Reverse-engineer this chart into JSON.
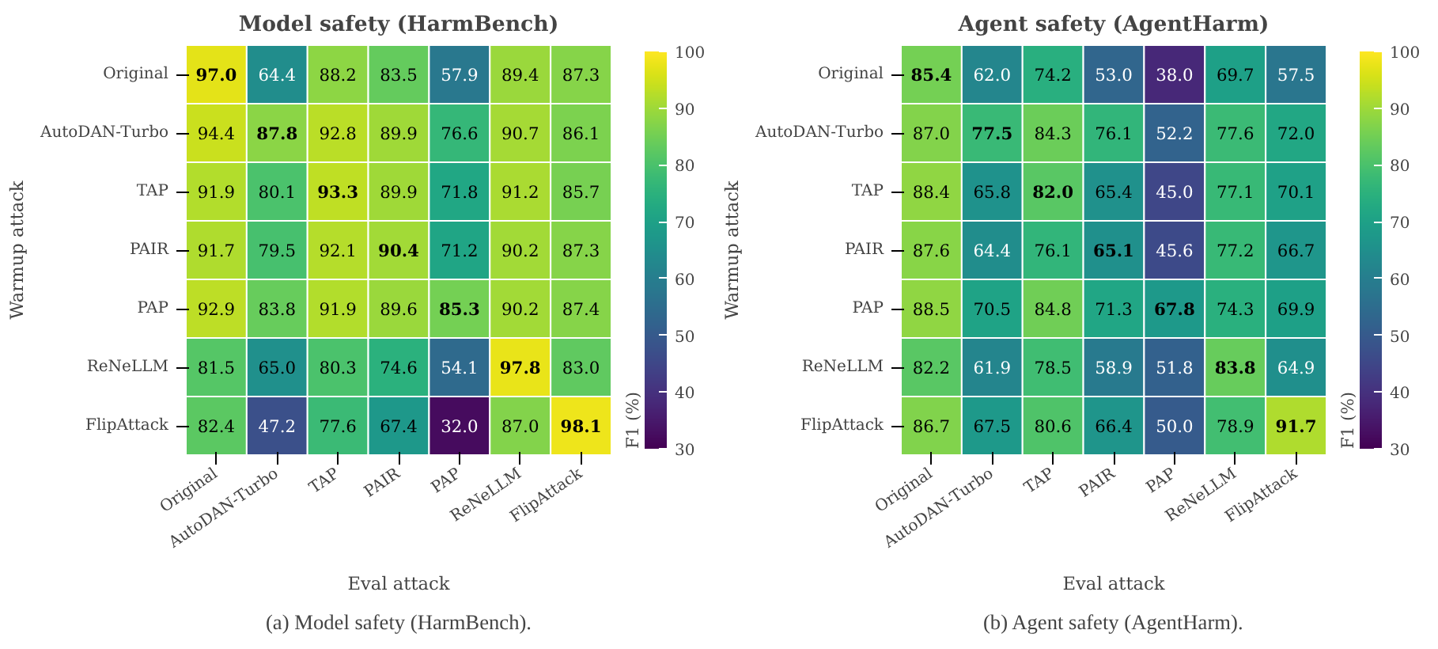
{
  "chart_data": [
    {
      "type": "heatmap",
      "title": "Model safety (HarmBench)",
      "xlabel": "Eval attack",
      "ylabel": "Warmup attack",
      "clabel": "F1 (%)",
      "data_labels": true,
      "categories": [
        "Original",
        "AutoDAN-Turbo",
        "TAP",
        "PAIR",
        "PAP",
        "ReNeLLM",
        "FlipAttack"
      ],
      "y_categories": [
        "Original",
        "AutoDAN-Turbo",
        "TAP",
        "PAIR",
        "PAP",
        "ReNeLLM",
        "FlipAttack"
      ],
      "cells": [
        [
          97.0,
          64.4,
          88.2,
          83.5,
          57.9,
          89.4,
          87.3
        ],
        [
          94.4,
          87.8,
          92.8,
          89.9,
          76.6,
          90.7,
          86.1
        ],
        [
          91.9,
          80.1,
          93.3,
          89.9,
          71.8,
          91.2,
          85.7
        ],
        [
          91.7,
          79.5,
          92.1,
          90.4,
          71.2,
          90.2,
          87.3
        ],
        [
          92.9,
          83.8,
          91.9,
          89.6,
          85.3,
          90.2,
          87.4
        ],
        [
          81.5,
          65.0,
          80.3,
          74.6,
          54.1,
          97.8,
          83.0
        ],
        [
          82.4,
          47.2,
          77.6,
          67.4,
          32.0,
          87.0,
          98.1
        ]
      ],
      "cell_labels": [
        [
          "97.0",
          "64.4",
          "88.2",
          "83.5",
          "57.9",
          "89.4",
          "87.3"
        ],
        [
          "94.4",
          "87.8",
          "92.8",
          "89.9",
          "76.6",
          "90.7",
          "86.1"
        ],
        [
          "91.9",
          "80.1",
          "93.3",
          "89.9",
          "71.8",
          "91.2",
          "85.7"
        ],
        [
          "91.7",
          "79.5",
          "92.1",
          "90.4",
          "71.2",
          "90.2",
          "87.3"
        ],
        [
          "92.9",
          "83.8",
          "91.9",
          "89.6",
          "85.3",
          "90.2",
          "87.4"
        ],
        [
          "81.5",
          "65.0",
          "80.3",
          "74.6",
          "54.1",
          "97.8",
          "83.0"
        ],
        [
          "82.4",
          "47.2",
          "77.6",
          "67.4",
          "32.0",
          "87.0",
          "98.1"
        ]
      ],
      "clim": [
        30,
        100
      ],
      "cticks": [
        30,
        40,
        50,
        60,
        70,
        80,
        90,
        100
      ],
      "annotations": [
        "(a) Model safety (HarmBench)."
      ]
    },
    {
      "type": "heatmap",
      "title": "Agent safety (AgentHarm)",
      "xlabel": "Eval attack",
      "ylabel": "Warmup attack",
      "clabel": "F1 (%)",
      "data_labels": true,
      "categories": [
        "Original",
        "AutoDAN-Turbo",
        "TAP",
        "PAIR",
        "PAP",
        "ReNeLLM",
        "FlipAttack"
      ],
      "y_categories": [
        "Original",
        "AutoDAN-Turbo",
        "TAP",
        "PAIR",
        "PAP",
        "ReNeLLM",
        "FlipAttack"
      ],
      "cells": [
        [
          85.4,
          62.0,
          74.2,
          53.0,
          38.0,
          69.7,
          57.5
        ],
        [
          87.0,
          77.5,
          84.3,
          76.1,
          52.2,
          77.6,
          72.0
        ],
        [
          88.4,
          65.8,
          82.0,
          65.4,
          45.0,
          77.1,
          70.1
        ],
        [
          87.6,
          64.4,
          76.1,
          65.1,
          45.6,
          77.2,
          66.7
        ],
        [
          88.5,
          70.5,
          84.8,
          71.3,
          67.8,
          74.3,
          69.9
        ],
        [
          82.2,
          61.9,
          78.5,
          58.9,
          51.8,
          83.8,
          64.9
        ],
        [
          86.7,
          67.5,
          80.6,
          66.4,
          50.0,
          78.9,
          91.7
        ]
      ],
      "cell_labels": [
        [
          "85.4",
          "62.0",
          "74.2",
          "53.0",
          "38.0",
          "69.7",
          "57.5"
        ],
        [
          "87.0",
          "77.5",
          "84.3",
          "76.1",
          "52.2",
          "77.6",
          "72.0"
        ],
        [
          "88.4",
          "65.8",
          "82.0",
          "65.4",
          "45.0",
          "77.1",
          "70.1"
        ],
        [
          "87.6",
          "64.4",
          "76.1",
          "65.1",
          "45.6",
          "77.2",
          "66.7"
        ],
        [
          "88.5",
          "70.5",
          "84.8",
          "71.3",
          "67.8",
          "74.3",
          "69.9"
        ],
        [
          "82.2",
          "61.9",
          "78.5",
          "58.9",
          "51.8",
          "83.8",
          "64.9"
        ],
        [
          "86.7",
          "67.5",
          "80.6",
          "66.4",
          "50.0",
          "78.9",
          "91.7"
        ]
      ],
      "clim": [
        30,
        100
      ],
      "cticks": [
        30,
        40,
        50,
        60,
        70,
        80,
        90,
        100
      ],
      "annotations": [
        "(b) Agent safety (AgentHarm)."
      ]
    }
  ]
}
